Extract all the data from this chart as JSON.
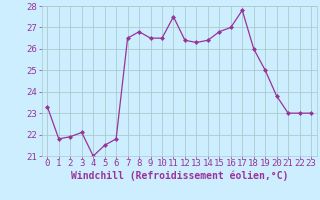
{
  "x": [
    0,
    1,
    2,
    3,
    4,
    5,
    6,
    7,
    8,
    9,
    10,
    11,
    12,
    13,
    14,
    15,
    16,
    17,
    18,
    19,
    20,
    21,
    22,
    23
  ],
  "y": [
    23.3,
    21.8,
    21.9,
    22.1,
    21.0,
    21.5,
    21.8,
    26.5,
    26.8,
    26.5,
    26.5,
    27.5,
    26.4,
    26.3,
    26.4,
    26.8,
    27.0,
    27.8,
    26.0,
    25.0,
    23.8,
    23.0,
    23.0,
    23.0
  ],
  "line_color": "#993399",
  "marker": "D",
  "marker_size": 2.0,
  "bg_color": "#cceeff",
  "grid_color": "#aacccc",
  "xlabel": "Windchill (Refroidissement éolien,°C)",
  "ylim": [
    21,
    28
  ],
  "xlim": [
    -0.5,
    23.5
  ],
  "yticks": [
    21,
    22,
    23,
    24,
    25,
    26,
    27,
    28
  ],
  "xticks": [
    0,
    1,
    2,
    3,
    4,
    5,
    6,
    7,
    8,
    9,
    10,
    11,
    12,
    13,
    14,
    15,
    16,
    17,
    18,
    19,
    20,
    21,
    22,
    23
  ],
  "axis_label_color": "#993399",
  "tick_color": "#993399",
  "font_size_xlabel": 7.0,
  "font_size_ticks": 6.5
}
